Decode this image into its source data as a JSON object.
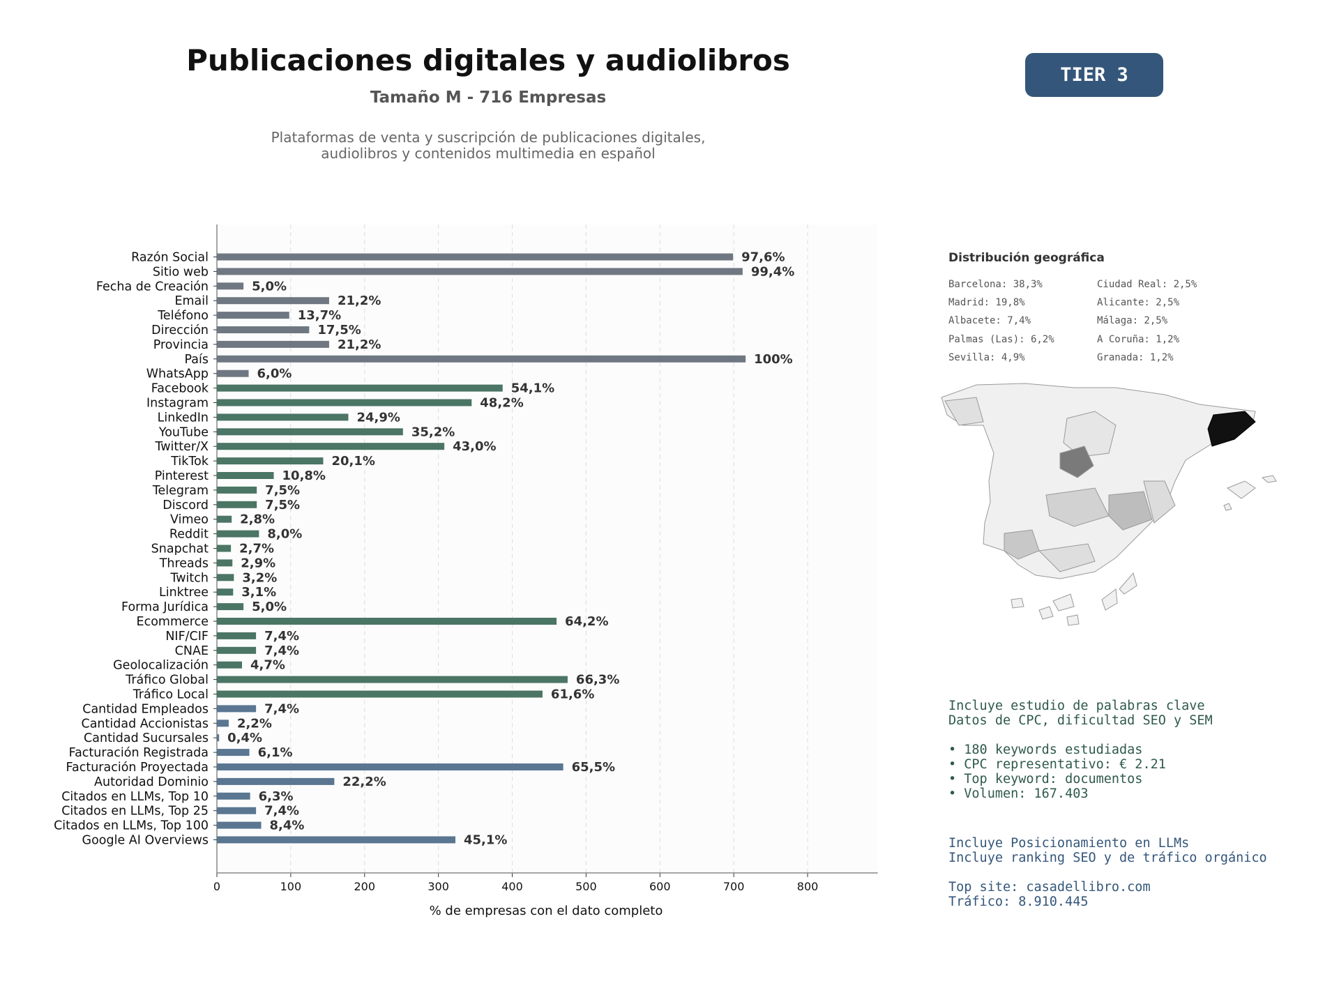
{
  "header": {
    "title": "Publicaciones digitales y audiolibros",
    "subtitle": "Tamaño M - 716 Empresas",
    "description_lines": [
      "Plataformas de venta y suscripción de publicaciones digitales,",
      "audiolibros y contenidos multimedia en español"
    ],
    "tier_label": "TIER 3"
  },
  "colors": {
    "gray": "#6f7882",
    "green": "#4b7564",
    "blue": "#5a7691",
    "tier_bg": "#34567a"
  },
  "chart_data": {
    "type": "bar",
    "orientation": "horizontal",
    "xlabel": "% de empresas con el dato completo",
    "ylabel": "",
    "xlim": [
      0,
      895
    ],
    "xticks": [
      0,
      100,
      200,
      300,
      400,
      500,
      600,
      700,
      800
    ],
    "grid": "vertical dashed",
    "categories": [
      "Razón Social",
      "Sitio web",
      "Fecha de Creación",
      "Email",
      "Teléfono",
      "Dirección",
      "Provincia",
      "País",
      "WhatsApp",
      "Facebook",
      "Instagram",
      "LinkedIn",
      "YouTube",
      "Twitter/X",
      "TikTok",
      "Pinterest",
      "Telegram",
      "Discord",
      "Vimeo",
      "Reddit",
      "Snapchat",
      "Threads",
      "Twitch",
      "Linktree",
      "Forma Jurídica",
      "Ecommerce",
      "NIF/CIF",
      "CNAE",
      "Geolocalización",
      "Tráfico Global",
      "Tráfico Local",
      "Cantidad Empleados",
      "Cantidad Accionistas",
      "Cantidad Sucursales",
      "Facturación Registrada",
      "Facturación Proyectada",
      "Autoridad Dominio",
      "Citados en LLMs, Top 10",
      "Citados en LLMs, Top 25",
      "Citados en LLMs, Top 100",
      "Google AI Overviews"
    ],
    "values": [
      699,
      712,
      36,
      152,
      98,
      125,
      152,
      716,
      43,
      387,
      345,
      178,
      252,
      308,
      144,
      77,
      54,
      54,
      20,
      57,
      19,
      21,
      23,
      22,
      36,
      460,
      53,
      53,
      34,
      475,
      441,
      53,
      16,
      3,
      44,
      469,
      159,
      45,
      53,
      60,
      323
    ],
    "labels": [
      "97,6%",
      "99,4%",
      "5,0%",
      "21,2%",
      "13,7%",
      "17,5%",
      "21,2%",
      "100%",
      "6,0%",
      "54,1%",
      "48,2%",
      "24,9%",
      "35,2%",
      "43,0%",
      "20,1%",
      "10,8%",
      "7,5%",
      "7,5%",
      "2,8%",
      "8,0%",
      "2,7%",
      "2,9%",
      "3,2%",
      "3,1%",
      "5,0%",
      "64,2%",
      "7,4%",
      "7,4%",
      "4,7%",
      "66,3%",
      "61,6%",
      "7,4%",
      "2,2%",
      "0,4%",
      "6,1%",
      "65,5%",
      "22,2%",
      "6,3%",
      "7,4%",
      "8,4%",
      "45,1%"
    ],
    "color_groups": [
      "gray",
      "gray",
      "gray",
      "gray",
      "gray",
      "gray",
      "gray",
      "gray",
      "gray",
      "green",
      "green",
      "green",
      "green",
      "green",
      "green",
      "green",
      "green",
      "green",
      "green",
      "green",
      "green",
      "green",
      "green",
      "green",
      "green",
      "green",
      "green",
      "green",
      "green",
      "green",
      "green",
      "blue",
      "blue",
      "blue",
      "blue",
      "blue",
      "blue",
      "blue",
      "blue",
      "blue",
      "blue"
    ]
  },
  "geo": {
    "title": "Distribución geográfica",
    "left": [
      "Barcelona: 38,3%",
      "Madrid: 19,8%",
      "Albacete: 7,4%",
      "Palmas (Las): 6,2%",
      "Sevilla: 4,9%"
    ],
    "right": [
      "Ciudad Real: 2,5%",
      "Alicante: 2,5%",
      "Málaga: 2,5%",
      "A Coruña: 1,2%",
      "Granada: 1,2%"
    ]
  },
  "keywords": {
    "lines": [
      "Incluye estudio de palabras clave",
      "Datos de CPC, dificultad SEO y SEM",
      "",
      "• 180 keywords estudiadas",
      "• CPC representativo: € 2.21",
      "• Top keyword: documentos",
      "• Volumen: 167.403"
    ]
  },
  "llm": {
    "lines": [
      "Incluye Posicionamiento en LLMs",
      "Incluye ranking SEO y de tráfico orgánico",
      "",
      "Top site: casadellibro.com",
      "Tráfico: 8.910.445"
    ]
  }
}
